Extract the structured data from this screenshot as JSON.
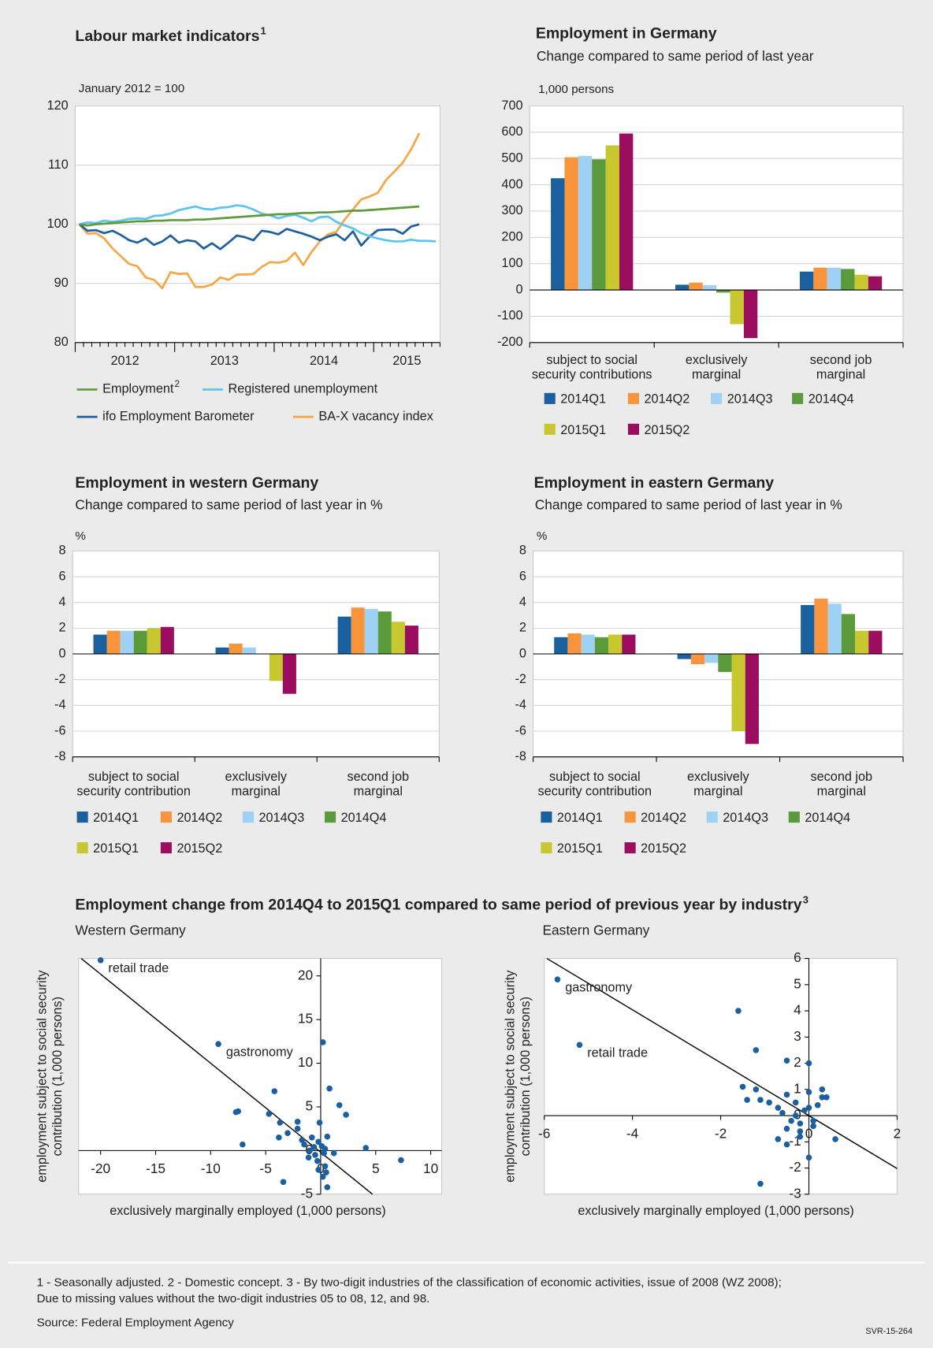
{
  "chart_data": [
    {
      "type": "line",
      "title": "Labour market indicators",
      "title_note": "1",
      "unit": "January 2012 = 100",
      "categories": [
        null,
        null,
        null,
        null,
        null,
        null,
        null,
        null,
        null,
        null,
        null,
        null,
        null,
        null,
        null,
        null,
        null,
        null,
        null,
        null,
        null,
        null,
        null,
        null,
        null,
        null,
        null,
        null,
        null,
        null,
        null,
        null,
        null,
        null,
        null,
        null,
        null,
        null,
        null,
        null,
        null,
        null,
        null,
        null
      ],
      "x_groups": [
        "2012",
        "2013",
        "2014",
        "2015"
      ],
      "ylim": [
        80,
        120
      ],
      "yticks": [
        80,
        90,
        100,
        110,
        120
      ],
      "grid": true,
      "series": [
        {
          "name": "Employment",
          "name_note": "2",
          "color": "#5f9a3b",
          "values": [
            100,
            99.8,
            100,
            100.1,
            100.2,
            100.3,
            100.4,
            100.5,
            100.5,
            100.6,
            100.6,
            100.7,
            100.7,
            100.7,
            100.8,
            100.8,
            100.9,
            101,
            101.1,
            101.2,
            101.3,
            101.4,
            101.5,
            101.6,
            101.7,
            101.7,
            101.8,
            101.9,
            101.9,
            102,
            102,
            102.1,
            102.2,
            102.3,
            102.3,
            102.4,
            102.5,
            102.6,
            102.7,
            102.8,
            102.9,
            103,
            null,
            null
          ]
        },
        {
          "name": "Registered unemployment",
          "color": "#5bc3f0",
          "values": [
            100,
            100.3,
            100.2,
            100.6,
            100.4,
            100.6,
            100.9,
            101,
            100.9,
            101.4,
            101.5,
            101.8,
            102.4,
            102.7,
            103,
            102.6,
            102.5,
            102.8,
            102.9,
            103.2,
            103,
            102.5,
            101.8,
            101.5,
            101,
            101.4,
            101.6,
            101.1,
            100.5,
            101.2,
            101.3,
            100.4,
            99.8,
            99.3,
            98.5,
            98,
            97.6,
            97.3,
            97.1,
            97.1,
            97.4,
            97.2,
            97.2,
            97.1
          ]
        },
        {
          "name": "ifo Employment Barometer",
          "color": "#1f5fa0",
          "values": [
            100,
            98.9,
            99,
            98.5,
            98.9,
            98.2,
            97.3,
            96.9,
            97.6,
            96.5,
            97.1,
            98.1,
            96.9,
            97.3,
            97.1,
            95.9,
            96.8,
            95.8,
            96.9,
            98.1,
            97.8,
            97.3,
            98.9,
            98.7,
            98.3,
            99.2,
            98.8,
            98.4,
            97.9,
            97.3,
            97.9,
            98.3,
            97.3,
            98.8,
            96.4,
            97.9,
            99,
            99.1,
            99.1,
            98.4,
            99.6,
            100,
            null,
            null
          ]
        },
        {
          "name": "BA-X vacancy index",
          "color": "#f7a545",
          "values": [
            100,
            98.4,
            98.5,
            97.6,
            95.9,
            94.6,
            93.3,
            92.9,
            91,
            90.6,
            89.2,
            91.9,
            91.6,
            91.7,
            89.4,
            89.4,
            89.8,
            91,
            90.6,
            91.5,
            91.5,
            91.6,
            92.8,
            93.6,
            93.5,
            93.8,
            95.2,
            93.1,
            95.3,
            97.1,
            98.3,
            98.7,
            100.8,
            102.5,
            104.2,
            104.7,
            105.3,
            107.5,
            108.9,
            110.4,
            112.6,
            115.4,
            null,
            null
          ]
        }
      ]
    },
    {
      "type": "bar",
      "title": "Employment in Germany",
      "subtitle": "Change compared to same period of last year",
      "unit": "1,000 persons",
      "categories": [
        [
          "subject to social",
          "security contributions"
        ],
        [
          "exclusively",
          "marginal"
        ],
        [
          "second job",
          "marginal"
        ]
      ],
      "ylim": [
        -200,
        700
      ],
      "yticks": [
        -200,
        -100,
        0,
        100,
        200,
        300,
        400,
        500,
        600,
        700
      ],
      "grid": true,
      "series": [
        {
          "name": "2014Q1",
          "color": "#1a5f9e",
          "values": [
            425,
            20,
            70
          ]
        },
        {
          "name": "2014Q2",
          "color": "#f7943c",
          "values": [
            505,
            28,
            85
          ]
        },
        {
          "name": "2014Q3",
          "color": "#9fd1f5",
          "values": [
            510,
            18,
            85
          ]
        },
        {
          "name": "2014Q4",
          "color": "#5b9a3a",
          "values": [
            497,
            -10,
            80
          ]
        },
        {
          "name": "2015Q1",
          "color": "#c9c72f",
          "values": [
            550,
            -130,
            58
          ]
        },
        {
          "name": "2015Q2",
          "color": "#9b0d5e",
          "values": [
            595,
            -183,
            52
          ]
        }
      ]
    },
    {
      "type": "bar",
      "title": "Employment in western Germany",
      "subtitle": "Change compared to same period of last year in %",
      "unit": "%",
      "categories": [
        [
          "subject to social",
          "security contribution"
        ],
        [
          "exclusively",
          "marginal"
        ],
        [
          "second job",
          "marginal"
        ]
      ],
      "ylim": [
        -8,
        8
      ],
      "yticks": [
        -8,
        -6,
        -4,
        -2,
        0,
        2,
        4,
        6,
        8
      ],
      "grid": true,
      "series": [
        {
          "name": "2014Q1",
          "color": "#1a5f9e",
          "values": [
            1.5,
            0.5,
            2.9
          ]
        },
        {
          "name": "2014Q2",
          "color": "#f7943c",
          "values": [
            1.8,
            0.8,
            3.6
          ]
        },
        {
          "name": "2014Q3",
          "color": "#9fd1f5",
          "values": [
            1.8,
            0.5,
            3.5
          ]
        },
        {
          "name": "2014Q4",
          "color": "#5b9a3a",
          "values": [
            1.8,
            0,
            3.3
          ]
        },
        {
          "name": "2015Q1",
          "color": "#c9c72f",
          "values": [
            2,
            -2.1,
            2.5
          ]
        },
        {
          "name": "2015Q2",
          "color": "#9b0d5e",
          "values": [
            2.1,
            -3.1,
            2.2
          ]
        }
      ]
    },
    {
      "type": "bar",
      "title": "Employment in eastern Germany",
      "subtitle": "Change compared to same period of last year in %",
      "unit": "%",
      "categories": [
        [
          "subject to social",
          "security contribution"
        ],
        [
          "exclusively",
          "marginal"
        ],
        [
          "second job",
          "marginal"
        ]
      ],
      "ylim": [
        -8,
        8
      ],
      "yticks": [
        -8,
        -6,
        -4,
        -2,
        0,
        2,
        4,
        6,
        8
      ],
      "grid": true,
      "series": [
        {
          "name": "2014Q1",
          "color": "#1a5f9e",
          "values": [
            1.3,
            -0.4,
            3.8
          ]
        },
        {
          "name": "2014Q2",
          "color": "#f7943c",
          "values": [
            1.6,
            -0.8,
            4.3
          ]
        },
        {
          "name": "2014Q3",
          "color": "#9fd1f5",
          "values": [
            1.5,
            -0.7,
            3.9
          ]
        },
        {
          "name": "2014Q4",
          "color": "#5b9a3a",
          "values": [
            1.3,
            -1.4,
            3.1
          ]
        },
        {
          "name": "2015Q1",
          "color": "#c9c72f",
          "values": [
            1.5,
            -6,
            1.8
          ]
        },
        {
          "name": "2015Q2",
          "color": "#9b0d5e",
          "values": [
            1.5,
            -7,
            1.8
          ]
        }
      ]
    },
    {
      "type": "scatter",
      "subtitle": "Western Germany",
      "xlabel": "exclusively marginally employed (1,000 persons)",
      "ylabel": [
        "employment subject to social security",
        "contribution (1,000 persons)"
      ],
      "xlim": [
        -22,
        11
      ],
      "ylim": [
        -5,
        22
      ],
      "xticks": [
        -20,
        -15,
        -10,
        -5,
        0,
        5,
        10
      ],
      "yticks": [
        -5,
        0,
        5,
        10,
        15,
        20
      ],
      "color": "#1a5f9e",
      "x": [
        -20,
        -9.3,
        -7.7,
        -7.5,
        -7.1,
        -4.2,
        -3.4,
        -4.7,
        -3.7,
        -3,
        -3.8,
        -2.1,
        -1.7,
        -2.1,
        0.2,
        0.8,
        1.7,
        2.3,
        4.1,
        7.3,
        0.6,
        -1,
        -0.5,
        -0.2,
        0.1,
        0.3,
        -0.3,
        0.4,
        0.5,
        -0.6,
        -1.1,
        -1.5,
        0.2,
        0.6,
        -0.2,
        0.4,
        -0.8,
        1.2,
        -0.1
      ],
      "y": [
        21.8,
        12.2,
        4.4,
        4.5,
        0.7,
        6.8,
        -3.6,
        4.2,
        3.2,
        2,
        1.5,
        3.3,
        1.2,
        2.5,
        12.4,
        7.1,
        5.2,
        4.1,
        0.3,
        -1.1,
        -4.2,
        0,
        -0.5,
        1,
        0.5,
        -0.3,
        -1.2,
        -1.8,
        -2.5,
        0.4,
        -0.8,
        0.7,
        -3,
        1.6,
        -2.2,
        0.2,
        1.5,
        -0.3,
        3.2
      ],
      "point_labels": [
        "retail trade",
        "gastronomy",
        null,
        null,
        null,
        null,
        null,
        null,
        null,
        null,
        null,
        null,
        null,
        null,
        null,
        null,
        null,
        null,
        null,
        null,
        null,
        null,
        null,
        null,
        null,
        null,
        null,
        null,
        null,
        null,
        null,
        null,
        null,
        null,
        null,
        null,
        null,
        null,
        null
      ],
      "trendline": {
        "slope": -1.02,
        "intercept": -0.2
      }
    },
    {
      "type": "scatter",
      "subtitle": "Eastern Germany",
      "xlabel": "exclusively marginally employed (1,000 persons)",
      "ylabel": [
        "employment subject to social security",
        "contribution (1,000 persons)"
      ],
      "xlim": [
        -6,
        2
      ],
      "ylim": [
        -3,
        6
      ],
      "xticks": [
        -6,
        -4,
        -2,
        0,
        2
      ],
      "yticks": [
        -3,
        -2,
        -1,
        0,
        1,
        2,
        3,
        4,
        5,
        6
      ],
      "color": "#1a5f9e",
      "x": [
        -5.7,
        -5.2,
        -1.6,
        -1.2,
        -0.5,
        0,
        -1.5,
        -1.2,
        -1.4,
        -1.1,
        -0.9,
        -0.7,
        -0.5,
        0.3,
        0.4,
        0.3,
        0,
        -0.3,
        -0.6,
        -0.5,
        -0.2,
        0.6,
        -0.5,
        -0.7,
        0,
        -1.1,
        -0.2,
        0.1,
        -0.1,
        -0.3,
        0.2,
        -0.4,
        0,
        0.1,
        -0.2
      ],
      "y": [
        5.2,
        2.7,
        4,
        2.5,
        2.1,
        2,
        1.1,
        1,
        0.6,
        0.6,
        0.5,
        0.3,
        0.8,
        1,
        0.7,
        0.7,
        0.9,
        0.5,
        0.1,
        -0.5,
        -0.8,
        -0.9,
        -1.1,
        -0.9,
        -1.6,
        -2.6,
        -0.3,
        -0.2,
        0.2,
        0,
        0.4,
        -0.2,
        0.3,
        -0.4,
        -0.6
      ],
      "point_labels": [
        "gastronomy",
        "retail trade",
        null,
        null,
        null,
        null,
        null,
        null,
        null,
        null,
        null,
        null,
        null,
        null,
        null,
        null,
        null,
        null,
        null,
        null,
        null,
        null,
        null,
        null,
        null,
        null,
        null,
        null,
        null,
        null,
        null,
        null,
        null,
        null,
        null
      ],
      "trendline": {
        "slope": -1.01,
        "intercept": 0
      }
    }
  ],
  "section_title": "Employment change from 2014Q4 to 2015Q1 compared to same period of previous year by industry",
  "section_title_note": "3",
  "footnotes": [
    "1 - Seasonally adjusted. 2 - Domestic concept. 3 - By two-digit industries of the classification of economic activities, issue of 2008 (WZ 2008);",
    "Due to missing values without the two-digit industries 05 to 08, 12, and 98."
  ],
  "source": "Source: Federal Employment Agency",
  "code": "SVR-15-264"
}
